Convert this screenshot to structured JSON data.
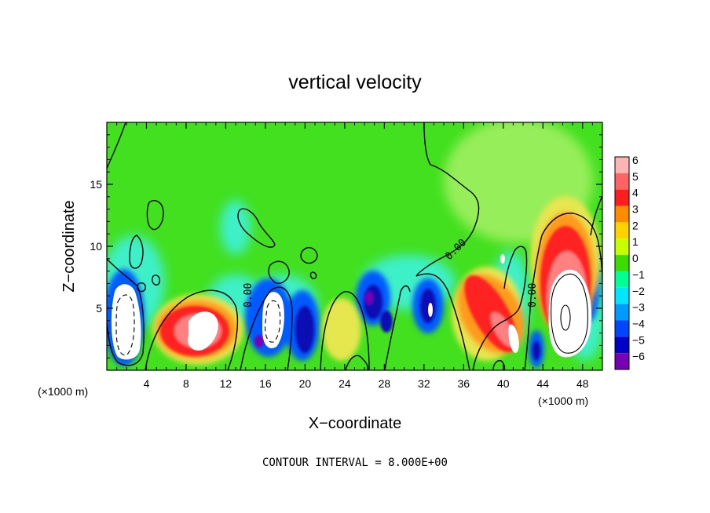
{
  "chart_data": {
    "type": "heatmap",
    "title": "vertical velocity",
    "xlabel": "X−coordinate",
    "ylabel": "Z−coordinate",
    "x_unit_left": "(×1000 m)",
    "x_unit_right": "(×1000 m)",
    "x_ticks": [
      4,
      8,
      12,
      16,
      20,
      24,
      28,
      32,
      36,
      40,
      44,
      48
    ],
    "x_tick_labels": [
      "4",
      "8",
      "12",
      "16",
      "20",
      "24",
      "28",
      "32",
      "36",
      "40",
      "44",
      "48"
    ],
    "xlim": [
      0,
      50
    ],
    "y_ticks": [
      5,
      10,
      15
    ],
    "y_tick_labels": [
      "5",
      "10",
      "15"
    ],
    "ylim": [
      0,
      20
    ],
    "colorbar": {
      "values": [
        6,
        5,
        4,
        3,
        2,
        1,
        0,
        -1,
        -2,
        -3,
        -4,
        -5,
        -6
      ],
      "labels": [
        "6",
        "5",
        "4",
        "3",
        "2",
        "1",
        "0",
        "−1",
        "−2",
        "−3",
        "−4",
        "−5",
        "−6"
      ],
      "colors": [
        "#ffb4b4",
        "#ff6464",
        "#ff1e1e",
        "#ff8c00",
        "#ffd200",
        "#c8ff00",
        "#3cdc00",
        "#00ff96",
        "#00e6ff",
        "#009bff",
        "#0046ff",
        "#0000c8",
        "#7800b4"
      ]
    },
    "contour_labels": [
      "0.00",
      "0.00",
      "0.00",
      "0.00",
      "0.00"
    ],
    "footer": "CONTOUR INTERVAL = 8.000E+00",
    "colors": {
      "background": "#42e01e",
      "light_green": "#96ee5a",
      "cyan": "#3cf0c8",
      "blue": "#005aff",
      "dark_blue": "#1010b4",
      "purple": "#7800b4",
      "red": "#ff2020",
      "pink": "#ff8080",
      "orange": "#ff9a1e",
      "yellow": "#e6e650",
      "white": "#ffffff"
    }
  }
}
